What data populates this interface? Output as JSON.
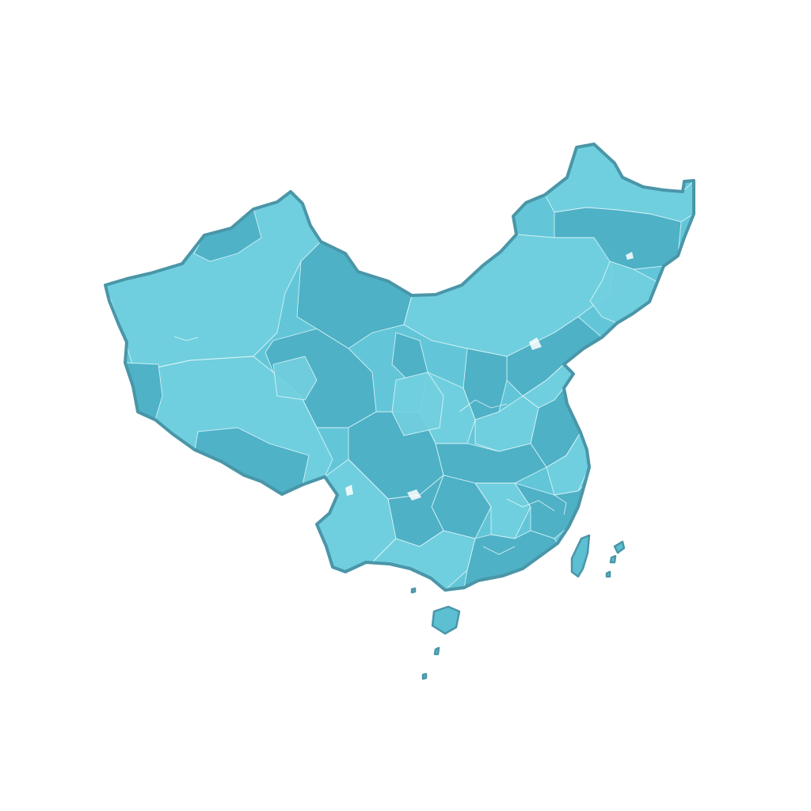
{
  "map": {
    "title": "",
    "colors": {
      "base": "#62c6d8",
      "light_region": "#72d0df",
      "dark_region": "#4db0c6",
      "outline": "#4a96a8",
      "internal_border": "#e2f6fa",
      "background": "#ffffff"
    }
  }
}
